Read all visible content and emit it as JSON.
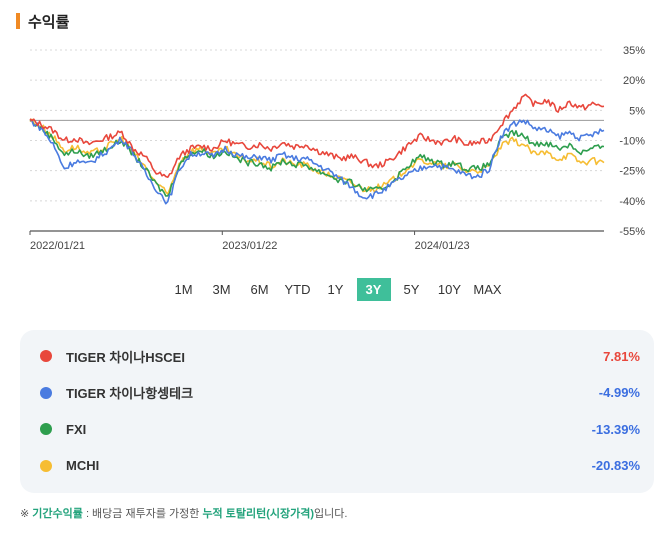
{
  "header": {
    "title": "수익률",
    "accent_color": "#f08a24"
  },
  "chart_data": {
    "type": "line",
    "x_ticks": [
      "2022/01/21",
      "2023/01/22",
      "2024/01/23"
    ],
    "y_ticks": [
      "35%",
      "20%",
      "5%",
      "-10%",
      "-25%",
      "-40%",
      "-55%"
    ],
    "ylim": [
      -55,
      35
    ],
    "baseline": 0,
    "series": [
      {
        "name": "TIGER 차이나HSCEI",
        "color": "#e8473c",
        "values": [
          0,
          -2,
          -5,
          -10,
          -9,
          -12,
          -10,
          -8,
          -6,
          -14,
          -18,
          -26,
          -29,
          -18,
          -14,
          -13,
          -14,
          -10,
          -12,
          -13,
          -12,
          -14,
          -11,
          -13,
          -12,
          -15,
          -17,
          -19,
          -18,
          -20,
          -23,
          -21,
          -17,
          -12,
          -8,
          -10,
          -11,
          -9,
          -12,
          -11,
          -10,
          -2,
          5,
          12,
          8,
          10,
          5,
          9,
          6,
          8,
          7
        ]
      },
      {
        "name": "TIGER 차이나항셍테크",
        "color": "#4a7be0",
        "values": [
          0,
          -4,
          -12,
          -24,
          -20,
          -22,
          -18,
          -14,
          -9,
          -16,
          -26,
          -34,
          -41,
          -24,
          -17,
          -16,
          -18,
          -14,
          -17,
          -19,
          -18,
          -20,
          -17,
          -19,
          -19,
          -22,
          -25,
          -29,
          -33,
          -38,
          -37,
          -34,
          -30,
          -27,
          -24,
          -22,
          -23,
          -25,
          -27,
          -28,
          -24,
          -8,
          -2,
          0,
          -4,
          -5,
          -8,
          -6,
          -9,
          -7,
          -5
        ]
      },
      {
        "name": "FXI",
        "color": "#2e9e4e",
        "values": [
          0,
          -4,
          -9,
          -17,
          -15,
          -18,
          -16,
          -13,
          -10,
          -17,
          -24,
          -32,
          -38,
          -22,
          -16,
          -15,
          -18,
          -15,
          -19,
          -21,
          -21,
          -24,
          -20,
          -22,
          -22,
          -25,
          -27,
          -30,
          -31,
          -34,
          -35,
          -33,
          -28,
          -22,
          -18,
          -20,
          -22,
          -21,
          -24,
          -24,
          -22,
          -10,
          -6,
          -8,
          -12,
          -11,
          -14,
          -12,
          -16,
          -14,
          -13
        ]
      },
      {
        "name": "MCHI",
        "color": "#f6bd33",
        "values": [
          0,
          -3,
          -8,
          -15,
          -13,
          -17,
          -15,
          -12,
          -9,
          -16,
          -23,
          -31,
          -37,
          -21,
          -15,
          -14,
          -17,
          -14,
          -18,
          -20,
          -20,
          -23,
          -20,
          -22,
          -22,
          -25,
          -27,
          -29,
          -31,
          -34,
          -34,
          -32,
          -28,
          -23,
          -20,
          -21,
          -23,
          -22,
          -25,
          -25,
          -23,
          -13,
          -10,
          -12,
          -17,
          -16,
          -19,
          -17,
          -21,
          -20,
          -21
        ]
      }
    ]
  },
  "periods": [
    "1M",
    "3M",
    "6M",
    "YTD",
    "1Y",
    "3Y",
    "5Y",
    "10Y",
    "MAX"
  ],
  "active_period": "3Y",
  "legend": [
    {
      "name": "TIGER 차이나HSCEI",
      "color": "#e8473c",
      "return": "7.81%",
      "return_color": "#e8473c"
    },
    {
      "name": "TIGER 차이나항셍테크",
      "color": "#4a7be0",
      "return": "-4.99%",
      "return_color": "#3b6ee0"
    },
    {
      "name": "FXI",
      "color": "#2e9e4e",
      "return": "-13.39%",
      "return_color": "#3b6ee0"
    },
    {
      "name": "MCHI",
      "color": "#f6bd33",
      "return": "-20.83%",
      "return_color": "#3b6ee0"
    }
  ],
  "footnote": {
    "prefix": "※ ",
    "term": "기간수익률",
    "middle": " : 배당금 재투자를 가정한 ",
    "highlight": "누적 토탈리턴(시장가격)",
    "suffix": "입니다."
  }
}
